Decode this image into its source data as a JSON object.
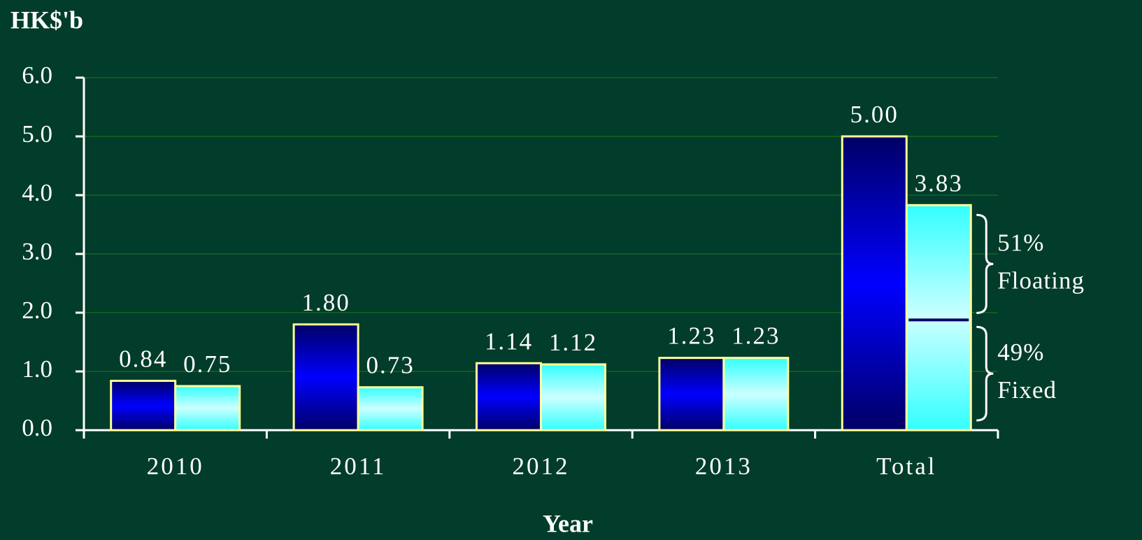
{
  "chart_data": {
    "type": "bar",
    "y_label": "HK$'b",
    "x_label": "Year",
    "categories": [
      "2010",
      "2011",
      "2012",
      "2013",
      "Total"
    ],
    "series": [
      {
        "color": "#0000ff",
        "values": [
          0.84,
          1.8,
          1.14,
          1.23,
          5.0
        ],
        "value_labels": [
          "0.84",
          "1.80",
          "1.14",
          "1.23",
          "5.00"
        ]
      },
      {
        "color": "#33ffff",
        "values": [
          0.75,
          0.73,
          1.12,
          1.23,
          3.83
        ],
        "value_labels": [
          "0.75",
          "0.73",
          "1.12",
          "1.23",
          "3.83"
        ]
      }
    ],
    "ylim": [
      0,
      6
    ],
    "yticks": [
      {
        "value": 0,
        "label": "0.0"
      },
      {
        "value": 1,
        "label": "1.0"
      },
      {
        "value": 2,
        "label": "2.0"
      },
      {
        "value": 3,
        "label": "3.0"
      },
      {
        "value": 4,
        "label": "4.0"
      },
      {
        "value": 5,
        "label": "5.0"
      },
      {
        "value": 6,
        "label": "6.0"
      }
    ],
    "grid": true,
    "bar_border": "#ffff99",
    "split": {
      "floating": {
        "name": "Floating",
        "value": 51,
        "label": "51%"
      },
      "fixed": {
        "name": "Fixed",
        "value": 49,
        "label": "49%"
      }
    }
  }
}
